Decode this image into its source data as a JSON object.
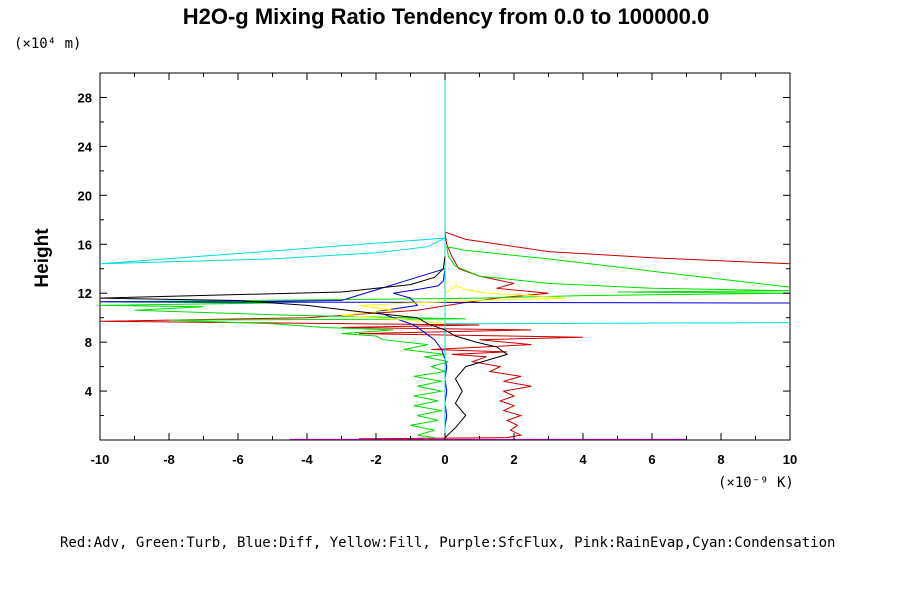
{
  "chart_data": {
    "type": "line",
    "title": "H2O-g Mixing Ratio Tendency from 0.0 to 100000.0",
    "ylabel": "Height",
    "y_unit": "(×10⁴ m)",
    "x_unit": "(×10⁻⁹ K)",
    "legend_text": "Red:Adv, Green:Turb, Blue:Diff, Yellow:Fill, Purple:SfcFlux, Pink:RainEvap,Cyan:Condensation",
    "xlim": [
      -10,
      10
    ],
    "ylim": [
      0,
      30
    ],
    "x_ticks": [
      -10,
      -8,
      -6,
      -4,
      -2,
      0,
      2,
      4,
      6,
      8,
      10
    ],
    "y_ticks": [
      4,
      8,
      12,
      16,
      20,
      24,
      28
    ],
    "grid": false,
    "series": [
      {
        "name": "Adv",
        "color": "#cc0000",
        "points": [
          [
            -2.5,
            0.1
          ],
          [
            1.8,
            0.2
          ],
          [
            2.2,
            0.4
          ],
          [
            1.9,
            0.8
          ],
          [
            2.1,
            1.2
          ],
          [
            1.8,
            1.6
          ],
          [
            2.2,
            2.0
          ],
          [
            1.7,
            2.4
          ],
          [
            2.0,
            2.8
          ],
          [
            1.6,
            3.2
          ],
          [
            2.0,
            3.6
          ],
          [
            1.7,
            4.0
          ],
          [
            2.5,
            4.4
          ],
          [
            1.7,
            4.8
          ],
          [
            2.2,
            5.2
          ],
          [
            1.3,
            5.6
          ],
          [
            1.6,
            6.0
          ],
          [
            0.8,
            6.4
          ],
          [
            1.2,
            6.8
          ],
          [
            0.2,
            7.0
          ],
          [
            1.8,
            7.2
          ],
          [
            -0.4,
            7.4
          ],
          [
            2.5,
            7.8
          ],
          [
            1.0,
            8.2
          ],
          [
            4.0,
            8.4
          ],
          [
            -2.5,
            8.7
          ],
          [
            2.5,
            9.0
          ],
          [
            -3.0,
            9.2
          ],
          [
            1.0,
            9.4
          ],
          [
            -6.0,
            9.6
          ],
          [
            -10,
            9.7
          ],
          [
            -4.0,
            10.0
          ],
          [
            -0.8,
            10.6
          ],
          [
            0.5,
            11.2
          ],
          [
            1.5,
            11.6
          ],
          [
            3.0,
            12.0
          ],
          [
            1.5,
            12.4
          ],
          [
            2.0,
            12.8
          ],
          [
            1.0,
            13.4
          ],
          [
            0.4,
            14.0
          ],
          [
            0.2,
            15.0
          ],
          [
            0.05,
            16.0
          ],
          [
            0.0,
            17.0
          ],
          [
            0.6,
            16.4
          ],
          [
            3.0,
            15.4
          ],
          [
            6.0,
            14.9
          ],
          [
            10,
            14.4
          ]
        ]
      },
      {
        "name": "Turb",
        "color": "#00dd00",
        "points": [
          [
            -0.3,
            0.2
          ],
          [
            -0.8,
            0.4
          ],
          [
            -0.3,
            0.8
          ],
          [
            -1.0,
            1.2
          ],
          [
            -0.2,
            1.6
          ],
          [
            -0.8,
            2.0
          ],
          [
            -0.1,
            2.4
          ],
          [
            -0.9,
            2.8
          ],
          [
            -0.2,
            3.2
          ],
          [
            -0.9,
            3.6
          ],
          [
            -0.1,
            4.0
          ],
          [
            -0.8,
            4.4
          ],
          [
            -0.1,
            4.8
          ],
          [
            -0.9,
            5.2
          ],
          [
            0.0,
            5.6
          ],
          [
            -0.4,
            6.0
          ],
          [
            0.1,
            6.4
          ],
          [
            -0.6,
            6.8
          ],
          [
            0.0,
            7.0
          ],
          [
            -1.2,
            7.4
          ],
          [
            -0.5,
            7.8
          ],
          [
            -1.8,
            8.2
          ],
          [
            -2.0,
            8.5
          ],
          [
            -3.0,
            8.7
          ],
          [
            -1.5,
            9.0
          ],
          [
            -3.5,
            9.2
          ],
          [
            -5.0,
            9.5
          ],
          [
            -8.0,
            9.8
          ],
          [
            0.6,
            9.9
          ],
          [
            -4.5,
            10.2
          ],
          [
            -9.0,
            10.6
          ],
          [
            -7.0,
            10.9
          ],
          [
            -10,
            11.0
          ],
          [
            -5.0,
            11.2
          ],
          [
            -10,
            11.3
          ],
          [
            -6.0,
            11.4
          ],
          [
            -2.0,
            11.5
          ],
          [
            1.0,
            11.6
          ],
          [
            4.0,
            11.8
          ],
          [
            7.0,
            11.9
          ],
          [
            10,
            12.0
          ],
          [
            5.0,
            12.1
          ],
          [
            10,
            12.2
          ],
          [
            6.0,
            12.4
          ],
          [
            3.0,
            12.8
          ],
          [
            1.0,
            13.4
          ],
          [
            0.3,
            14.2
          ],
          [
            0.1,
            15.0
          ],
          [
            0.05,
            15.8
          ],
          [
            0.6,
            15.5
          ],
          [
            3.0,
            14.8
          ],
          [
            6.0,
            13.8
          ],
          [
            10,
            12.5
          ]
        ]
      },
      {
        "name": "Diff",
        "color": "#0000dd",
        "points": [
          [
            0.0,
            0.2
          ],
          [
            0.0,
            1.0
          ],
          [
            0.05,
            2.0
          ],
          [
            0.0,
            3.0
          ],
          [
            0.05,
            4.0
          ],
          [
            0.0,
            5.0
          ],
          [
            0.05,
            6.0
          ],
          [
            0.0,
            6.6
          ],
          [
            -0.1,
            7.4
          ],
          [
            -0.3,
            8.2
          ],
          [
            -0.6,
            8.8
          ],
          [
            -0.9,
            9.4
          ],
          [
            -1.5,
            10.0
          ],
          [
            -2.0,
            10.5
          ],
          [
            -0.8,
            11.0
          ],
          [
            -1.0,
            11.6
          ],
          [
            -1.5,
            12.0
          ],
          [
            -0.8,
            12.3
          ],
          [
            -0.2,
            12.6
          ],
          [
            -0.05,
            13.0
          ],
          [
            0.0,
            14.0
          ],
          [
            -3.0,
            11.4
          ],
          [
            -6.0,
            11.3
          ],
          [
            -10,
            11.3
          ],
          [
            10,
            11.2
          ]
        ]
      },
      {
        "name": "Fill",
        "color": "#ffff00",
        "points": [
          [
            0.0,
            12.0
          ],
          [
            0.3,
            12.6
          ],
          [
            0.6,
            12.3
          ],
          [
            1.2,
            12.0
          ],
          [
            2.5,
            11.8
          ],
          [
            3.5,
            11.6
          ],
          [
            0.8,
            11.4
          ],
          [
            -1.0,
            11.2
          ],
          [
            -2.5,
            11.0
          ],
          [
            -1.5,
            10.6
          ],
          [
            -3.0,
            10.2
          ],
          [
            -1.0,
            9.8
          ],
          [
            0.0,
            9.5
          ]
        ]
      },
      {
        "name": "SfcFlux",
        "color": "#aa00aa",
        "points": [
          [
            -4.5,
            0.05
          ],
          [
            0.0,
            0.05
          ],
          [
            7.0,
            0.05
          ]
        ]
      },
      {
        "name": "RainEvap",
        "color": "#ff88cc",
        "points": [
          [
            0.0,
            0.2
          ],
          [
            0.0,
            9.5
          ]
        ]
      },
      {
        "name": "Condensation",
        "color": "#00dddd",
        "points": [
          [
            0.0,
            0.0
          ],
          [
            0.0,
            30.0
          ],
          [
            0.0,
            16.5
          ],
          [
            -0.5,
            15.8
          ],
          [
            -2.0,
            15.3
          ],
          [
            -5.0,
            14.8
          ],
          [
            -10,
            14.4
          ],
          [
            0.0,
            16.5
          ],
          [
            0.0,
            9.5
          ],
          [
            10,
            9.6
          ]
        ]
      },
      {
        "name": "",
        "color": "#000000",
        "points": [
          [
            0.0,
            0.2
          ],
          [
            0.3,
            1.0
          ],
          [
            0.6,
            2.0
          ],
          [
            0.3,
            3.0
          ],
          [
            0.5,
            4.0
          ],
          [
            0.3,
            5.0
          ],
          [
            0.6,
            6.0
          ],
          [
            1.2,
            6.5
          ],
          [
            1.8,
            7.0
          ],
          [
            1.5,
            7.6
          ],
          [
            0.9,
            8.0
          ],
          [
            0.3,
            8.5
          ],
          [
            0.0,
            9.0
          ],
          [
            -0.5,
            9.5
          ],
          [
            -0.8,
            10.0
          ],
          [
            -2.5,
            10.5
          ],
          [
            -4.0,
            11.0
          ],
          [
            -6.0,
            11.4
          ],
          [
            -10,
            11.6
          ],
          [
            -3.0,
            12.1
          ],
          [
            -1.0,
            12.7
          ],
          [
            -0.3,
            13.3
          ],
          [
            -0.05,
            14.0
          ],
          [
            0.0,
            15.0
          ]
        ]
      }
    ]
  }
}
